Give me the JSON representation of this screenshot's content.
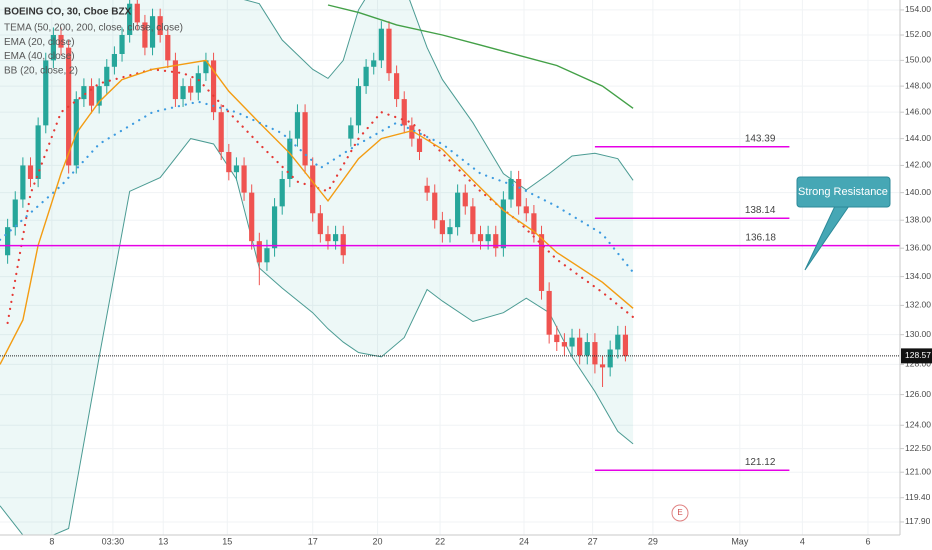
{
  "chart_data": {
    "type": "candlestick",
    "title": "BOEING CO, 30, Cboe BZX",
    "log_scale": true,
    "grid": true,
    "xlim": [
      0,
      118
    ],
    "ylim": [
      117.1,
      154.8
    ],
    "xticks": [
      {
        "value": 6.8,
        "label": "8"
      },
      {
        "value": 14.8,
        "label": "03:30"
      },
      {
        "value": 21.4,
        "label": "13"
      },
      {
        "value": 29.8,
        "label": "15"
      },
      {
        "value": 41,
        "label": "17"
      },
      {
        "value": 49.5,
        "label": "20"
      },
      {
        "value": 57.7,
        "label": "22"
      },
      {
        "value": 68.7,
        "label": "24"
      },
      {
        "value": 77.7,
        "label": "27"
      },
      {
        "value": 85.6,
        "label": "29"
      },
      {
        "value": 97,
        "label": "May"
      },
      {
        "value": 105.2,
        "label": "4"
      },
      {
        "value": 113.8,
        "label": "6"
      }
    ],
    "yticks": [
      {
        "value": 154,
        "label": "154.00"
      },
      {
        "value": 152,
        "label": "152.00"
      },
      {
        "value": 150,
        "label": "150.00"
      },
      {
        "value": 148,
        "label": "148.00"
      },
      {
        "value": 146,
        "label": "146.00"
      },
      {
        "value": 144,
        "label": "144.00"
      },
      {
        "value": 142,
        "label": "142.00"
      },
      {
        "value": 140,
        "label": "140.00"
      },
      {
        "value": 138,
        "label": "138.00"
      },
      {
        "value": 136,
        "label": "136.00"
      },
      {
        "value": 134,
        "label": "134.00"
      },
      {
        "value": 132,
        "label": "132.00"
      },
      {
        "value": 130,
        "label": "130.00"
      },
      {
        "value": 128,
        "label": "128.00"
      },
      {
        "value": 126,
        "label": "126.00"
      },
      {
        "value": 124,
        "label": "124.00"
      },
      {
        "value": 122.5,
        "label": "122.50"
      },
      {
        "value": 121,
        "label": "121.00"
      },
      {
        "value": 119.4,
        "label": "119.40"
      },
      {
        "value": 117.9,
        "label": "117.90"
      }
    ],
    "candles": {
      "up_color": "#26a69a",
      "down_color": "#ef5350",
      "x": [
        1,
        2,
        3,
        4,
        5,
        6,
        7,
        8,
        9,
        10,
        11,
        12,
        13,
        14,
        15,
        16,
        17,
        18,
        19,
        20,
        21,
        22,
        23,
        24,
        25,
        26,
        27,
        28,
        29,
        30,
        31,
        32,
        33,
        34,
        35,
        36,
        37,
        38,
        39,
        40,
        41,
        42,
        43,
        44,
        45,
        46,
        47,
        48,
        49,
        50,
        51,
        52,
        53,
        54,
        55,
        56,
        57,
        58,
        59,
        60,
        61,
        62,
        63,
        64,
        65,
        66,
        67,
        68,
        69,
        70,
        71,
        72,
        73,
        74,
        75,
        76,
        77,
        78,
        79,
        80,
        81,
        82
      ],
      "open": [
        135.5,
        137.5,
        139.5,
        142,
        141,
        145,
        150,
        152,
        151,
        142,
        147,
        148,
        146.5,
        148,
        149.5,
        150.5,
        152,
        154.5,
        153,
        151,
        153.5,
        152,
        150,
        147,
        148,
        147.5,
        149,
        150,
        146,
        143,
        141.5,
        142,
        140,
        136.5,
        135,
        136,
        139,
        141,
        144,
        146,
        142,
        138.5,
        137,
        136.5,
        137,
        144,
        145,
        148,
        149.5,
        150,
        152.5,
        149,
        147,
        145,
        144,
        140.5,
        140,
        138,
        137,
        137.5,
        140,
        139,
        137,
        136.5,
        137,
        136,
        139.5,
        141,
        139,
        138.5,
        137,
        133,
        130,
        129.5,
        129.2,
        129.8,
        128.6,
        129.5,
        128,
        127.8,
        129,
        130
      ],
      "high": [
        138.1,
        140.1,
        142.6,
        142.6,
        145.6,
        150.6,
        152.6,
        152.6,
        151.6,
        147.6,
        148.6,
        148.6,
        148.6,
        150.1,
        151.1,
        152.6,
        155.1,
        155.1,
        153.6,
        154.1,
        154.1,
        152.6,
        150.6,
        148.6,
        148.6,
        149.6,
        150.6,
        150.6,
        146.6,
        143.6,
        142.6,
        142.6,
        140.6,
        137.1,
        136.6,
        139.6,
        141.6,
        144.6,
        146.6,
        146.6,
        142.6,
        139.1,
        137.6,
        137.6,
        137.6,
        145.6,
        148.6,
        150.1,
        150.6,
        153.1,
        153.1,
        149.6,
        147.6,
        145.6,
        144.6,
        141.1,
        140.6,
        138.6,
        138.1,
        140.6,
        140.6,
        139.6,
        137.6,
        137.6,
        137.6,
        140.1,
        141.6,
        141.6,
        139.6,
        139.1,
        137.6,
        133.6,
        130.6,
        130.1,
        130.4,
        130.4,
        130.1,
        130.1,
        128.6,
        129.6,
        130.6,
        130.6
      ],
      "low": [
        134.9,
        136.9,
        138.9,
        140.4,
        140.4,
        144.4,
        149.4,
        150.4,
        141.4,
        141.4,
        146.4,
        145.9,
        145.9,
        147.4,
        148.9,
        149.9,
        151.4,
        152.4,
        150.4,
        150.4,
        151.4,
        149.4,
        146.4,
        146.4,
        146.9,
        146.9,
        148.4,
        145.4,
        142.4,
        140.9,
        140.9,
        139.4,
        135.9,
        133.4,
        134.4,
        135.4,
        138.4,
        140.4,
        143.4,
        141.4,
        137.9,
        136.4,
        135.9,
        135.9,
        134.9,
        143.4,
        144.4,
        147.4,
        148.9,
        149.4,
        148.4,
        146.4,
        144.4,
        143.4,
        142.4,
        139.4,
        137.4,
        136.4,
        136.4,
        136.9,
        138.4,
        136.4,
        135.9,
        135.9,
        135.4,
        135.4,
        138.9,
        138.4,
        137.9,
        136.4,
        132.4,
        129.4,
        128.9,
        128.6,
        128.6,
        128,
        128,
        127.4,
        126.5,
        127.2,
        128.4,
        128.2
      ],
      "close": [
        137.5,
        139.5,
        142,
        141,
        145,
        150,
        152,
        151,
        142,
        147,
        148,
        146.5,
        148,
        149.5,
        150.5,
        152,
        154.5,
        153,
        151,
        153.5,
        152,
        150,
        147,
        148,
        147.5,
        149,
        150,
        146,
        143,
        141.5,
        142,
        140,
        136.5,
        135,
        136,
        139,
        141,
        144,
        146,
        142,
        138.5,
        137,
        136.5,
        137,
        135.5,
        145,
        148,
        149.5,
        150,
        152.5,
        149,
        147,
        145,
        144,
        143,
        140,
        138,
        137,
        137.5,
        140,
        139,
        137,
        136.5,
        137,
        136,
        139.5,
        141,
        139,
        138.5,
        137,
        133,
        130,
        129.5,
        129.2,
        129.8,
        128.6,
        129.5,
        128,
        127.8,
        129,
        130,
        128.57
      ]
    },
    "series": [
      {
        "name": "TEMA (50, 200, 200, close, close, close)",
        "color": "#e53935",
        "style": "dots",
        "x": [
          1,
          4,
          8,
          13,
          20,
          24,
          26,
          30,
          34,
          39,
          43,
          47,
          50,
          54,
          58,
          63,
          68,
          73,
          79,
          83
        ],
        "values": [
          130.8,
          139.9,
          146,
          148.2,
          149.3,
          149,
          148.5,
          146,
          143.6,
          140.8,
          140.1,
          144,
          146,
          145.2,
          142.9,
          140.1,
          137.9,
          135.2,
          132.9,
          131.2
        ]
      },
      {
        "name": "EMA (20, close)",
        "color": "#f39c12",
        "style": "line",
        "x": [
          0,
          3,
          5,
          8,
          10,
          13,
          16,
          20,
          24,
          27,
          30,
          34,
          38,
          43,
          47,
          50,
          54,
          58,
          62,
          66,
          70,
          73,
          79,
          83
        ],
        "values": [
          128,
          131,
          136.2,
          141.4,
          144.4,
          146.8,
          148.5,
          149.3,
          149.7,
          150,
          147.6,
          145.2,
          142.9,
          139.4,
          142.5,
          144,
          144.6,
          143.2,
          140.9,
          138.7,
          137.2,
          135.7,
          133.6,
          131.8
        ]
      },
      {
        "name": "EMA (40, close)",
        "color": "#3d9be0",
        "style": "dots",
        "x": [
          0,
          8,
          13,
          20,
          26,
          31,
          37,
          42,
          47,
          52,
          58,
          63,
          68,
          73,
          79,
          83
        ],
        "values": [
          136.6,
          140.5,
          143.6,
          146,
          146.8,
          146,
          144.4,
          141.8,
          143.6,
          145.2,
          143.6,
          141.4,
          140.4,
          139,
          137,
          134.3
        ]
      },
      {
        "name": "BB (20, close, 2)",
        "color": "#4b9b93",
        "fill": "rgba(0,150,136,0.07)",
        "style": "band",
        "x": [
          0,
          4,
          9,
          13,
          17,
          21,
          25,
          28,
          31,
          34,
          37,
          41,
          43,
          45,
          47,
          50,
          53,
          56,
          58,
          62,
          66,
          69,
          72,
          75,
          78,
          81,
          83
        ],
        "upper": [
          157,
          158,
          160,
          160,
          160,
          160,
          159,
          157,
          155,
          154.5,
          151.6,
          149.3,
          148.6,
          150,
          154,
          157,
          156,
          151,
          148.5,
          145.2,
          141.4,
          140.2,
          141.4,
          142.7,
          142.9,
          142.5,
          140.9
        ],
        "lower": [
          118.9,
          116.5,
          117.5,
          128.5,
          140.1,
          141.1,
          144,
          143.6,
          141,
          134.6,
          133.2,
          131.5,
          130.4,
          129.5,
          128.8,
          128.5,
          129.8,
          133.1,
          132.3,
          130.9,
          131.5,
          132.5,
          131.5,
          128.5,
          126.2,
          123.6,
          122.8
        ]
      },
      {
        "color": "#43a047",
        "style": "line",
        "x": [
          43,
          47,
          52,
          58,
          63,
          68,
          73,
          79,
          83
        ],
        "values": [
          154.4,
          153.8,
          152.8,
          152,
          151.2,
          150.4,
          149.6,
          148,
          146.3
        ]
      }
    ],
    "levels_color": "#e600e6",
    "levels": [
      {
        "value": 143.39,
        "x": [
          78,
          103.5
        ]
      },
      {
        "value": 138.14,
        "x": [
          78,
          103.5
        ]
      },
      {
        "value": 136.18,
        "x": [
          0,
          118
        ]
      },
      {
        "value": 121.12,
        "x": [
          78,
          103.5
        ]
      }
    ],
    "last_price": 128.57,
    "annotation": "Strong Resistance",
    "event_marker": "E"
  }
}
